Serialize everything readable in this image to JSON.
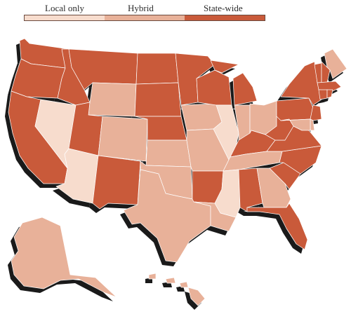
{
  "legend": {
    "items": [
      {
        "label": "Local only",
        "color": "#f7dccd"
      },
      {
        "label": "Hybrid",
        "color": "#e8b199"
      },
      {
        "label": "State-wide",
        "color": "#c95a3a"
      }
    ]
  },
  "colors": {
    "shadow": "#1a1a1a",
    "border": "#ffffff"
  },
  "states": {
    "WA": "State-wide",
    "OR": "State-wide",
    "CA": "State-wide",
    "NV": "Local only",
    "ID": "State-wide",
    "MT": "State-wide",
    "WY": "Hybrid",
    "UT": "State-wide",
    "AZ": "Local only",
    "CO": "Hybrid",
    "NM": "State-wide",
    "ND": "State-wide",
    "SD": "State-wide",
    "NE": "State-wide",
    "KS": "Hybrid",
    "OK": "Hybrid",
    "TX": "Hybrid",
    "MN": "State-wide",
    "IA": "Hybrid",
    "MO": "Hybrid",
    "AR": "State-wide",
    "LA": "Hybrid",
    "WI": "State-wide",
    "IL": "Local only",
    "MI": "State-wide",
    "IN": "Hybrid",
    "OH": "Hybrid",
    "KY": "State-wide",
    "TN": "Hybrid",
    "MS": "Local only",
    "AL": "State-wide",
    "GA": "Hybrid",
    "FL": "State-wide",
    "SC": "State-wide",
    "NC": "State-wide",
    "VA": "State-wide",
    "WV": "State-wide",
    "PA": "State-wide",
    "NY": "State-wide",
    "ME": "Hybrid",
    "VT": "State-wide",
    "NH": "State-wide",
    "MA": "State-wide",
    "CT": "State-wide",
    "RI": "State-wide",
    "NJ": "State-wide",
    "DE": "Hybrid",
    "MD": "Hybrid",
    "AK": "Hybrid",
    "HI": "Hybrid"
  }
}
